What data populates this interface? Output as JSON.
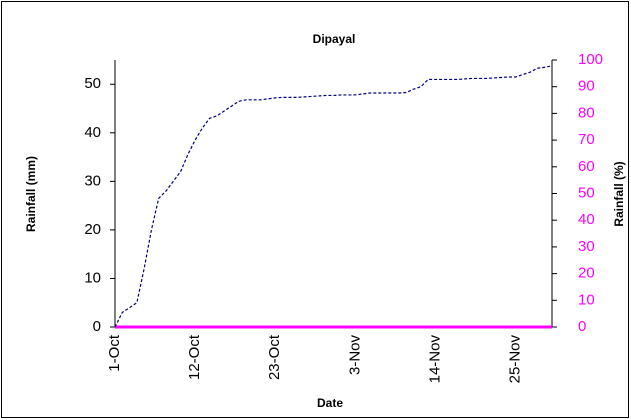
{
  "chart_data": {
    "type": "line",
    "title": "Dipayal",
    "xlabel": "Date",
    "ylabel": "Rainfall (mm)",
    "y2label": "Rainfall (%)",
    "categories": [
      "1-Oct",
      null,
      null,
      null,
      null,
      null,
      null,
      null,
      null,
      null,
      null,
      "12-Oct",
      null,
      null,
      null,
      null,
      null,
      null,
      null,
      null,
      null,
      null,
      "23-Oct",
      null,
      null,
      null,
      null,
      null,
      null,
      null,
      null,
      null,
      null,
      "3-Nov",
      null,
      null,
      null,
      null,
      null,
      null,
      null,
      null,
      null,
      null,
      "14-Nov",
      null,
      null,
      null,
      null,
      null,
      null,
      null,
      null,
      null,
      null,
      "25-Nov",
      null,
      null,
      null,
      null,
      null
    ],
    "series": [
      {
        "color": "#000080",
        "dash": true,
        "axis": "y",
        "values": [
          0,
          3,
          4,
          5,
          12,
          20,
          26.5,
          28,
          30,
          32,
          35.5,
          38.5,
          41,
          43,
          43.5,
          44.5,
          45.5,
          46.5,
          46.8,
          46.8,
          46.8,
          47,
          47.2,
          47.3,
          47.3,
          47.3,
          47.4,
          47.5,
          47.6,
          47.7,
          47.7,
          47.8,
          47.8,
          47.8,
          48,
          48.2,
          48.2,
          48.2,
          48.2,
          48.2,
          48.3,
          49,
          49.5,
          51,
          51,
          51,
          51,
          51,
          51.1,
          51.2,
          51.2,
          51.2,
          51.3,
          51.4,
          51.5,
          51.5,
          52,
          52.5,
          53.3,
          53.5,
          53.8
        ]
      },
      {
        "color": "#ff00ff",
        "dash": false,
        "axis": "y2",
        "values": [
          0,
          0,
          0,
          0,
          0,
          0,
          0,
          0,
          0,
          0,
          0,
          0,
          0,
          0,
          0,
          0,
          0,
          0,
          0,
          0,
          0,
          0,
          0,
          0,
          0,
          0,
          0,
          0,
          0,
          0,
          0,
          0,
          0,
          0,
          0,
          0,
          0,
          0,
          0,
          0,
          0,
          0,
          0,
          0,
          0,
          0,
          0,
          0,
          0,
          0,
          0,
          0,
          0,
          0,
          0,
          0,
          0,
          0,
          0,
          0,
          0
        ]
      }
    ],
    "ylim": [
      0,
      55
    ],
    "yticks": [
      0,
      10,
      20,
      30,
      40,
      50
    ],
    "y2lim": [
      0,
      100
    ],
    "y2ticks": [
      0,
      10,
      20,
      30,
      40,
      50,
      60,
      70,
      80,
      90,
      100
    ],
    "y2color": "#ff00ff",
    "grid": false
  }
}
